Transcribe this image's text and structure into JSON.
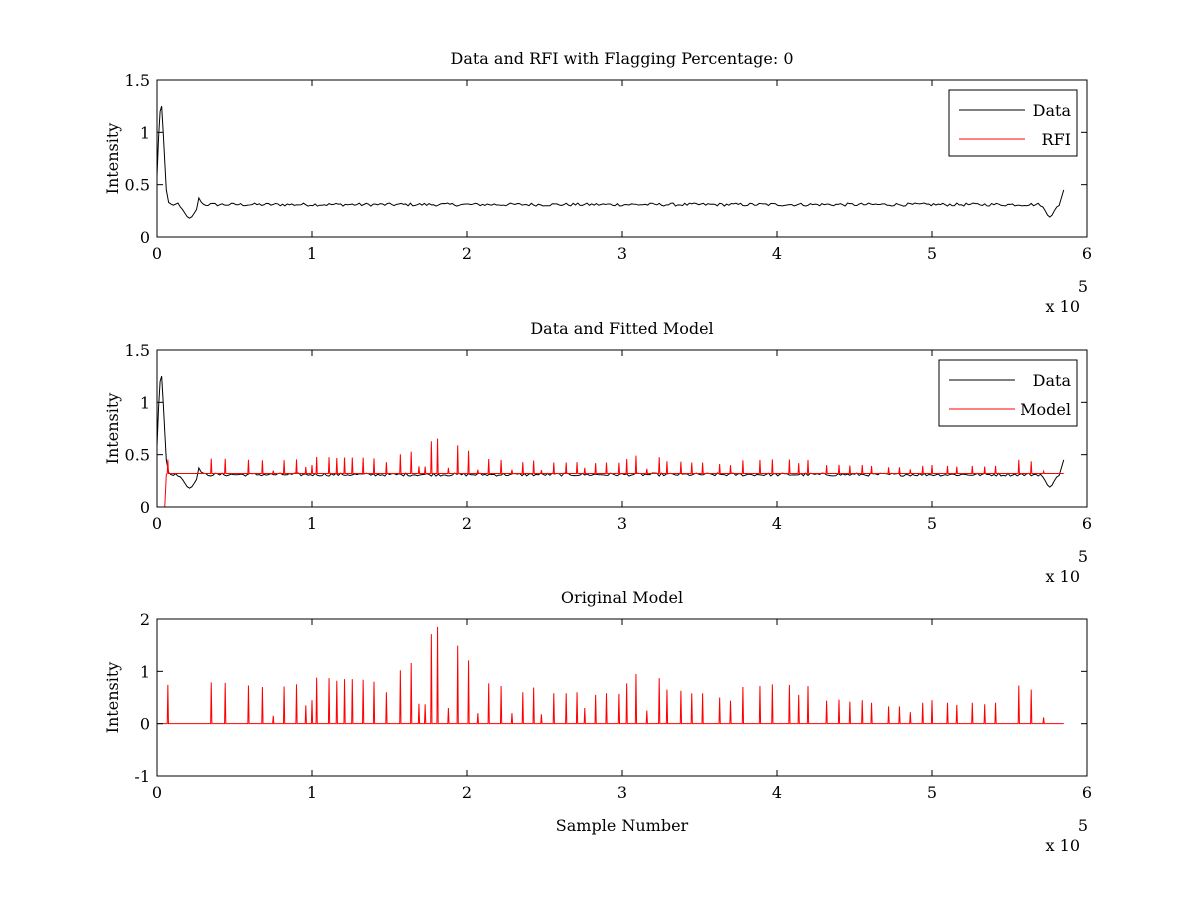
{
  "figure": {
    "background": "#ffffff"
  },
  "chart_data": [
    {
      "type": "line",
      "title": "Data and RFI with Flagging Percentage: 0",
      "xlabel": "",
      "ylabel": "Intensity",
      "xlim": [
        0,
        600000
      ],
      "ylim": [
        0,
        1.5
      ],
      "x_ticks": [
        "0",
        "1",
        "2",
        "3",
        "4",
        "5",
        "6"
      ],
      "y_ticks": [
        "0",
        "0.5",
        "1",
        "1.5"
      ],
      "x_exponent_label": "x 10",
      "x_exponent_power": "5",
      "grid": false,
      "legend_position": "top-right",
      "legend": [
        "Data",
        "RFI"
      ],
      "series": [
        {
          "name": "Data",
          "color": "#000000",
          "baseline": 0.31
        },
        {
          "name": "RFI",
          "color": "#ff0000"
        }
      ]
    },
    {
      "type": "line",
      "title": "Data and Fitted Model",
      "xlabel": "",
      "ylabel": "Intensity",
      "xlim": [
        0,
        600000
      ],
      "ylim": [
        0,
        1.5
      ],
      "x_ticks": [
        "0",
        "1",
        "2",
        "3",
        "4",
        "5",
        "6"
      ],
      "y_ticks": [
        "0",
        "0.5",
        "1",
        "1.5"
      ],
      "x_exponent_label": "x 10",
      "x_exponent_power": "5",
      "grid": false,
      "legend_position": "top-right",
      "legend": [
        "Data",
        "Model"
      ],
      "series": [
        {
          "name": "Data",
          "color": "#000000",
          "baseline": 0.31
        },
        {
          "name": "Model",
          "color": "#ff0000",
          "baseline": 0.32
        }
      ]
    },
    {
      "type": "line",
      "title": "Original Model",
      "xlabel": "Sample Number",
      "ylabel": "Intensity",
      "xlim": [
        0,
        600000
      ],
      "ylim": [
        -1,
        2
      ],
      "x_ticks": [
        "0",
        "1",
        "2",
        "3",
        "4",
        "5",
        "6"
      ],
      "y_ticks": [
        "-1",
        "0",
        "1",
        "2"
      ],
      "x_exponent_label": "x 10",
      "x_exponent_power": "5",
      "grid": false,
      "legend_position": "none",
      "legend": [],
      "series": [
        {
          "name": "",
          "color": "#ff0000",
          "baseline": 0
        }
      ]
    }
  ],
  "spikes": {
    "data_peaks": [
      [
        8000,
        0.44
      ],
      [
        37000,
        0.44
      ],
      [
        45000,
        0.44
      ],
      [
        60000,
        0.45
      ],
      [
        68000,
        0.44
      ],
      [
        82000,
        0.44
      ],
      [
        90000,
        0.45
      ],
      [
        96000,
        0.43
      ],
      [
        104000,
        0.47
      ],
      [
        111000,
        0.48
      ],
      [
        116000,
        0.46
      ],
      [
        121000,
        0.48
      ],
      [
        126000,
        0.46
      ],
      [
        131000,
        0.48
      ],
      [
        139000,
        0.45
      ],
      [
        148000,
        0.47
      ],
      [
        158000,
        0.5
      ],
      [
        167000,
        0.45
      ],
      [
        173000,
        0.62
      ],
      [
        181000,
        0.64
      ],
      [
        194000,
        0.57
      ],
      [
        202000,
        0.5
      ],
      [
        215000,
        0.44
      ],
      [
        224000,
        0.45
      ],
      [
        238000,
        0.44
      ],
      [
        246000,
        0.46
      ],
      [
        262000,
        0.44
      ],
      [
        272000,
        0.45
      ],
      [
        283000,
        0.44
      ],
      [
        290000,
        0.43
      ],
      [
        299000,
        0.46
      ],
      [
        309000,
        0.44
      ],
      [
        316000,
        0.46
      ],
      [
        324000,
        0.48
      ],
      [
        334000,
        0.45
      ],
      [
        343000,
        0.44
      ],
      [
        352000,
        0.45
      ],
      [
        362000,
        0.43
      ],
      [
        370000,
        0.43
      ],
      [
        375000,
        0.43
      ],
      [
        382000,
        0.44
      ],
      [
        393000,
        0.43
      ],
      [
        400000,
        0.44
      ],
      [
        411000,
        0.45
      ],
      [
        417000,
        0.44
      ],
      [
        425000,
        0.43
      ],
      [
        432000,
        0.44
      ],
      [
        440000,
        0.43
      ],
      [
        446000,
        0.43
      ],
      [
        452000,
        0.42
      ],
      [
        458000,
        0.42
      ],
      [
        470000,
        0.41
      ],
      [
        478000,
        0.41
      ],
      [
        486000,
        0.41
      ],
      [
        494000,
        0.42
      ],
      [
        500000,
        0.42
      ],
      [
        512000,
        0.41
      ],
      [
        520000,
        0.42
      ],
      [
        530000,
        0.41
      ],
      [
        540000,
        0.42
      ],
      [
        548000,
        0.42
      ],
      [
        558000,
        0.43
      ],
      [
        566000,
        0.43
      ],
      [
        578000,
        0.44
      ]
    ],
    "model_peaks": [
      [
        7000,
        0.74
      ],
      [
        35000,
        0.79
      ],
      [
        44000,
        0.78
      ],
      [
        59000,
        0.73
      ],
      [
        68000,
        0.7
      ],
      [
        75000,
        0.15
      ],
      [
        82000,
        0.71
      ],
      [
        90000,
        0.75
      ],
      [
        96000,
        0.35
      ],
      [
        100000,
        0.45
      ],
      [
        103000,
        0.88
      ],
      [
        111000,
        0.87
      ],
      [
        116000,
        0.82
      ],
      [
        121000,
        0.85
      ],
      [
        126000,
        0.85
      ],
      [
        133000,
        0.84
      ],
      [
        140000,
        0.8
      ],
      [
        148000,
        0.6
      ],
      [
        157000,
        1.02
      ],
      [
        164000,
        1.16
      ],
      [
        169000,
        0.38
      ],
      [
        173000,
        0.37
      ],
      [
        177000,
        1.71
      ],
      [
        181000,
        1.85
      ],
      [
        188000,
        0.3
      ],
      [
        194000,
        1.49
      ],
      [
        201000,
        1.21
      ],
      [
        207000,
        0.2
      ],
      [
        214000,
        0.77
      ],
      [
        222000,
        0.72
      ],
      [
        229000,
        0.2
      ],
      [
        236000,
        0.6
      ],
      [
        243000,
        0.69
      ],
      [
        248000,
        0.18
      ],
      [
        256000,
        0.58
      ],
      [
        264000,
        0.58
      ],
      [
        271000,
        0.6
      ],
      [
        276000,
        0.3
      ],
      [
        283000,
        0.55
      ],
      [
        290000,
        0.58
      ],
      [
        298000,
        0.57
      ],
      [
        303000,
        0.77
      ],
      [
        309000,
        0.95
      ],
      [
        316000,
        0.25
      ],
      [
        324000,
        0.87
      ],
      [
        329000,
        0.65
      ],
      [
        338000,
        0.63
      ],
      [
        345000,
        0.58
      ],
      [
        352000,
        0.58
      ],
      [
        363000,
        0.5
      ],
      [
        370000,
        0.44
      ],
      [
        378000,
        0.7
      ],
      [
        389000,
        0.72
      ],
      [
        397000,
        0.75
      ],
      [
        408000,
        0.74
      ],
      [
        414000,
        0.55
      ],
      [
        420000,
        0.72
      ],
      [
        432000,
        0.44
      ],
      [
        440000,
        0.46
      ],
      [
        447000,
        0.42
      ],
      [
        455000,
        0.45
      ],
      [
        461000,
        0.4
      ],
      [
        472000,
        0.33
      ],
      [
        479000,
        0.33
      ],
      [
        486000,
        0.22
      ],
      [
        494000,
        0.4
      ],
      [
        500000,
        0.45
      ],
      [
        510000,
        0.4
      ],
      [
        516000,
        0.36
      ],
      [
        526000,
        0.4
      ],
      [
        534000,
        0.37
      ],
      [
        541000,
        0.4
      ],
      [
        556000,
        0.73
      ],
      [
        564000,
        0.65
      ],
      [
        572000,
        0.12
      ]
    ]
  }
}
